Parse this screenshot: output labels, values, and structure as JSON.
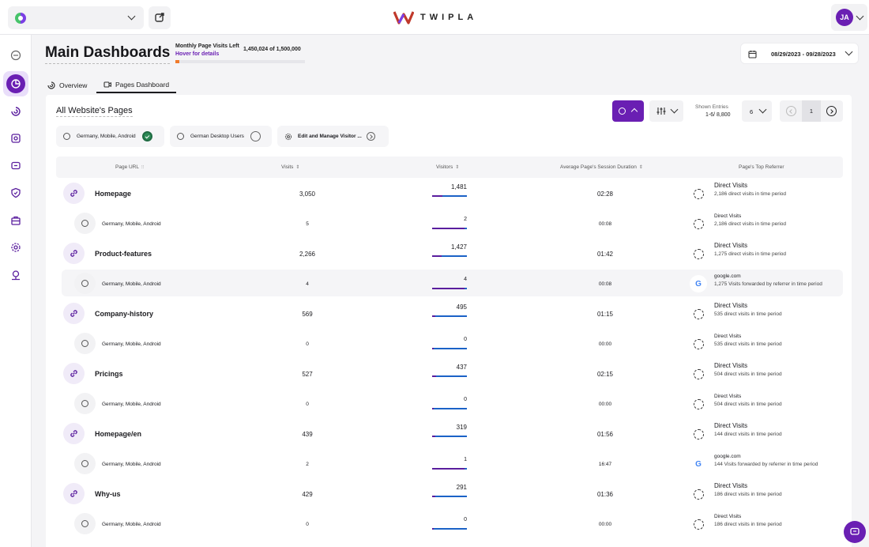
{
  "header": {
    "title": "Main Dashboards",
    "quota_label": "Monthly Page Visits Left",
    "quota_hover": "Hover for details",
    "quota_count": "1,450,024 of 1,500,000",
    "quota_used_fraction": 0.033,
    "date_range": "08/29/2023 - 09/28/2023"
  },
  "topbar": {
    "logo_text": "TWIPLA",
    "avatar_initials": "JA"
  },
  "colors": {
    "accent": "#6a1fb3",
    "quota_bar": "#f07a2b",
    "bar_primary": "#1b62c7"
  },
  "sidebar": {
    "items": [
      {
        "icon": "home-icon"
      },
      {
        "icon": "dashboard-icon",
        "active": true
      },
      {
        "icon": "analytics-icon"
      },
      {
        "icon": "behavior-icon"
      },
      {
        "icon": "feedback-icon"
      },
      {
        "icon": "privacy-icon"
      },
      {
        "icon": "briefcase-icon"
      },
      {
        "icon": "settings-icon"
      },
      {
        "icon": "location-icon"
      }
    ]
  },
  "tabs": [
    {
      "label": "Overview",
      "active": false
    },
    {
      "label": "Pages Dashboard",
      "active": true
    }
  ],
  "card": {
    "title": "All Website's Pages",
    "shown_entries_label": "Shown Entries",
    "shown_entries_value": "1-6/ 8,800",
    "page_size": "6",
    "current_page": "1"
  },
  "segments": [
    {
      "label": "Germany, Mobile, Android",
      "checked": true
    },
    {
      "label": "German Desktop Users",
      "checked": false
    },
    {
      "label": "Edit and Manage Visitor ..."
    }
  ],
  "columns": {
    "url": "Page URL",
    "visits": "Visits",
    "visitors": "Visitors",
    "duration": "Average Page's Session Duration",
    "referrer": "Page's Top Referrer"
  },
  "rows": [
    {
      "type": "main",
      "name": "Homepage",
      "visits": "3,050",
      "visitors": "1,481",
      "visitors_share": 0.3,
      "duration": "02:28",
      "ref_type": "direct",
      "ref_title": "Direct Visits",
      "ref_desc": "2,186 direct visits in time period"
    },
    {
      "type": "sub",
      "name": "Germany, Mobile, Android",
      "visits": "5",
      "visitors": "2",
      "visitors_share": 0.93,
      "duration": "00:08",
      "ref_type": "direct",
      "ref_title": "Direct Visits",
      "ref_desc": "2,186 direct visits in time period"
    },
    {
      "type": "main",
      "name": "Product-features",
      "visits": "2,266",
      "visitors": "1,427",
      "visitors_share": 0.28,
      "duration": "01:42",
      "ref_type": "direct",
      "ref_title": "Direct Visits",
      "ref_desc": "1,275 direct visits in time period"
    },
    {
      "type": "sub",
      "highlight": true,
      "name": "Germany, Mobile, Android",
      "visits": "4",
      "visitors": "4",
      "visitors_share": 0.93,
      "duration": "00:08",
      "ref_type": "google",
      "ref_title": "google.com",
      "ref_desc": "1,275 Visits forwarded by referrer in time period"
    },
    {
      "type": "main",
      "name": "Company-history",
      "visits": "569",
      "visitors": "495",
      "visitors_share": 0.1,
      "duration": "01:15",
      "ref_type": "direct",
      "ref_title": "Direct Visits",
      "ref_desc": "535 direct visits in time period"
    },
    {
      "type": "sub",
      "name": "Germany, Mobile, Android",
      "visits": "0",
      "visitors": "0",
      "visitors_share": 0.05,
      "duration": "00:00",
      "ref_type": "direct",
      "ref_title": "Direct Visits",
      "ref_desc": "535 direct visits in time period"
    },
    {
      "type": "main",
      "name": "Pricings",
      "visits": "527",
      "visitors": "437",
      "visitors_share": 0.12,
      "duration": "02:15",
      "ref_type": "direct",
      "ref_title": "Direct Visits",
      "ref_desc": "504 direct visits in time period"
    },
    {
      "type": "sub",
      "name": "Germany, Mobile, Android",
      "visits": "0",
      "visitors": "0",
      "visitors_share": 0.05,
      "duration": "00:00",
      "ref_type": "direct",
      "ref_title": "Direct Visits",
      "ref_desc": "504 direct visits in time period"
    },
    {
      "type": "main",
      "name": "Homepage/en",
      "visits": "439",
      "visitors": "319",
      "visitors_share": 0.08,
      "duration": "01:56",
      "ref_type": "direct",
      "ref_title": "Direct Visits",
      "ref_desc": "144 direct visits in time period"
    },
    {
      "type": "sub",
      "name": "Germany, Mobile, Android",
      "visits": "2",
      "visitors": "1",
      "visitors_share": 0.93,
      "duration": "16:47",
      "ref_type": "google",
      "ref_title": "google.com",
      "ref_desc": "144 Visits forwarded by referrer in time period"
    },
    {
      "type": "main",
      "name": "Why-us",
      "visits": "429",
      "visitors": "291",
      "visitors_share": 0.08,
      "duration": "01:36",
      "ref_type": "direct",
      "ref_title": "Direct Visits",
      "ref_desc": "186 direct visits in time period"
    },
    {
      "type": "sub",
      "name": "Germany, Mobile, Android",
      "visits": "0",
      "visitors": "0",
      "visitors_share": 0.05,
      "duration": "00:00",
      "ref_type": "direct",
      "ref_title": "Direct Visits",
      "ref_desc": "186 direct visits in time period"
    }
  ]
}
